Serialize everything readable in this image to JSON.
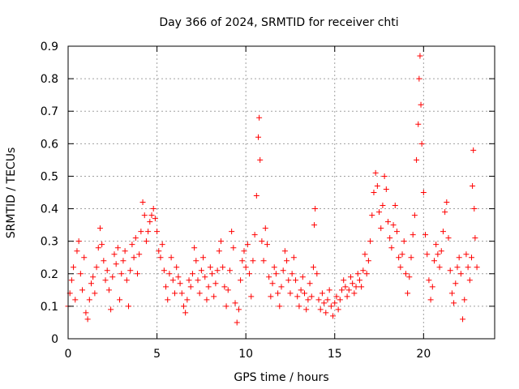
{
  "chart_data": {
    "type": "scatter",
    "title": "Day 366 of 2024, SRMTID for receiver chti",
    "xlabel": "GPS time / hours",
    "ylabel": "SRMTID / TECUs",
    "xlim": [
      0,
      24
    ],
    "ylim": [
      0,
      0.9
    ],
    "x_ticks": [
      0,
      5,
      10,
      15,
      20
    ],
    "x_tick_labels": [
      "0",
      "5",
      "10",
      "15",
      "20"
    ],
    "y_ticks": [
      0,
      0.1,
      0.2,
      0.3,
      0.4,
      0.5,
      0.6,
      0.7,
      0.8,
      0.9
    ],
    "y_tick_labels": [
      "0",
      "0.1",
      "0.2",
      "0.3",
      "0.4",
      "0.5",
      "0.6",
      "0.7",
      "0.8",
      "0.9"
    ],
    "grid": true,
    "marker": "+",
    "color": "#ff0000",
    "series": [
      {
        "name": "SRMTID",
        "points": [
          [
            0.0,
            0.1
          ],
          [
            0.1,
            0.14
          ],
          [
            0.2,
            0.18
          ],
          [
            0.3,
            0.22
          ],
          [
            0.4,
            0.12
          ],
          [
            0.5,
            0.27
          ],
          [
            0.6,
            0.3
          ],
          [
            0.7,
            0.2
          ],
          [
            0.8,
            0.15
          ],
          [
            0.9,
            0.25
          ],
          [
            1.0,
            0.08
          ],
          [
            1.1,
            0.06
          ],
          [
            1.2,
            0.12
          ],
          [
            1.3,
            0.17
          ],
          [
            1.4,
            0.19
          ],
          [
            1.5,
            0.14
          ],
          [
            1.6,
            0.22
          ],
          [
            1.7,
            0.28
          ],
          [
            1.8,
            0.34
          ],
          [
            1.9,
            0.29
          ],
          [
            2.0,
            0.24
          ],
          [
            2.1,
            0.18
          ],
          [
            2.2,
            0.21
          ],
          [
            2.3,
            0.15
          ],
          [
            2.4,
            0.09
          ],
          [
            2.5,
            0.19
          ],
          [
            2.6,
            0.26
          ],
          [
            2.7,
            0.23
          ],
          [
            2.8,
            0.28
          ],
          [
            2.9,
            0.12
          ],
          [
            3.0,
            0.2
          ],
          [
            3.1,
            0.24
          ],
          [
            3.2,
            0.27
          ],
          [
            3.3,
            0.18
          ],
          [
            3.4,
            0.1
          ],
          [
            3.5,
            0.21
          ],
          [
            3.6,
            0.29
          ],
          [
            3.7,
            0.25
          ],
          [
            3.8,
            0.31
          ],
          [
            3.9,
            0.2
          ],
          [
            4.0,
            0.26
          ],
          [
            4.1,
            0.33
          ],
          [
            4.2,
            0.42
          ],
          [
            4.3,
            0.38
          ],
          [
            4.4,
            0.3
          ],
          [
            4.5,
            0.33
          ],
          [
            4.6,
            0.36
          ],
          [
            4.7,
            0.38
          ],
          [
            4.8,
            0.4
          ],
          [
            4.9,
            0.37
          ],
          [
            5.0,
            0.33
          ],
          [
            5.1,
            0.27
          ],
          [
            5.2,
            0.25
          ],
          [
            5.3,
            0.29
          ],
          [
            5.4,
            0.21
          ],
          [
            5.5,
            0.16
          ],
          [
            5.6,
            0.12
          ],
          [
            5.7,
            0.2
          ],
          [
            5.8,
            0.25
          ],
          [
            5.9,
            0.18
          ],
          [
            6.0,
            0.14
          ],
          [
            6.1,
            0.22
          ],
          [
            6.2,
            0.19
          ],
          [
            6.3,
            0.17
          ],
          [
            6.4,
            0.14
          ],
          [
            6.5,
            0.1
          ],
          [
            6.6,
            0.08
          ],
          [
            6.7,
            0.12
          ],
          [
            6.8,
            0.18
          ],
          [
            6.9,
            0.16
          ],
          [
            7.0,
            0.2
          ],
          [
            7.1,
            0.28
          ],
          [
            7.2,
            0.24
          ],
          [
            7.3,
            0.18
          ],
          [
            7.4,
            0.14
          ],
          [
            7.5,
            0.21
          ],
          [
            7.6,
            0.25
          ],
          [
            7.7,
            0.19
          ],
          [
            7.8,
            0.12
          ],
          [
            7.9,
            0.16
          ],
          [
            8.0,
            0.22
          ],
          [
            8.1,
            0.2
          ],
          [
            8.2,
            0.13
          ],
          [
            8.3,
            0.17
          ],
          [
            8.4,
            0.21
          ],
          [
            8.5,
            0.27
          ],
          [
            8.6,
            0.3
          ],
          [
            8.7,
            0.22
          ],
          [
            8.8,
            0.16
          ],
          [
            8.9,
            0.1
          ],
          [
            9.0,
            0.15
          ],
          [
            9.1,
            0.21
          ],
          [
            9.2,
            0.33
          ],
          [
            9.3,
            0.28
          ],
          [
            9.4,
            0.11
          ],
          [
            9.5,
            0.05
          ],
          [
            9.6,
            0.09
          ],
          [
            9.7,
            0.18
          ],
          [
            9.8,
            0.24
          ],
          [
            9.9,
            0.27
          ],
          [
            10.0,
            0.22
          ],
          [
            10.1,
            0.29
          ],
          [
            10.2,
            0.2
          ],
          [
            10.3,
            0.13
          ],
          [
            10.4,
            0.24
          ],
          [
            10.5,
            0.32
          ],
          [
            10.6,
            0.44
          ],
          [
            10.7,
            0.62
          ],
          [
            10.75,
            0.68
          ],
          [
            10.8,
            0.55
          ],
          [
            10.9,
            0.3
          ],
          [
            11.0,
            0.24
          ],
          [
            11.1,
            0.34
          ],
          [
            11.2,
            0.29
          ],
          [
            11.3,
            0.19
          ],
          [
            11.4,
            0.13
          ],
          [
            11.5,
            0.17
          ],
          [
            11.6,
            0.22
          ],
          [
            11.7,
            0.2
          ],
          [
            11.8,
            0.14
          ],
          [
            11.9,
            0.1
          ],
          [
            12.0,
            0.16
          ],
          [
            12.1,
            0.21
          ],
          [
            12.2,
            0.27
          ],
          [
            12.3,
            0.24
          ],
          [
            12.4,
            0.18
          ],
          [
            12.5,
            0.14
          ],
          [
            12.6,
            0.2
          ],
          [
            12.7,
            0.25
          ],
          [
            12.8,
            0.18
          ],
          [
            12.9,
            0.13
          ],
          [
            13.0,
            0.1
          ],
          [
            13.1,
            0.15
          ],
          [
            13.2,
            0.19
          ],
          [
            13.3,
            0.14
          ],
          [
            13.4,
            0.09
          ],
          [
            13.5,
            0.12
          ],
          [
            13.6,
            0.17
          ],
          [
            13.7,
            0.13
          ],
          [
            13.8,
            0.22
          ],
          [
            13.85,
            0.35
          ],
          [
            13.9,
            0.4
          ],
          [
            14.0,
            0.2
          ],
          [
            14.1,
            0.12
          ],
          [
            14.2,
            0.09
          ],
          [
            14.3,
            0.14
          ],
          [
            14.4,
            0.11
          ],
          [
            14.5,
            0.08
          ],
          [
            14.6,
            0.12
          ],
          [
            14.7,
            0.15
          ],
          [
            14.8,
            0.1
          ],
          [
            14.9,
            0.07
          ],
          [
            15.0,
            0.11
          ],
          [
            15.1,
            0.13
          ],
          [
            15.2,
            0.09
          ],
          [
            15.3,
            0.12
          ],
          [
            15.4,
            0.15
          ],
          [
            15.5,
            0.18
          ],
          [
            15.6,
            0.16
          ],
          [
            15.7,
            0.13
          ],
          [
            15.8,
            0.15
          ],
          [
            15.9,
            0.19
          ],
          [
            16.0,
            0.17
          ],
          [
            16.1,
            0.14
          ],
          [
            16.2,
            0.16
          ],
          [
            16.3,
            0.2
          ],
          [
            16.4,
            0.18
          ],
          [
            16.5,
            0.16
          ],
          [
            16.6,
            0.21
          ],
          [
            16.7,
            0.26
          ],
          [
            16.8,
            0.2
          ],
          [
            16.9,
            0.24
          ],
          [
            17.0,
            0.3
          ],
          [
            17.1,
            0.38
          ],
          [
            17.2,
            0.45
          ],
          [
            17.3,
            0.51
          ],
          [
            17.4,
            0.47
          ],
          [
            17.5,
            0.39
          ],
          [
            17.6,
            0.34
          ],
          [
            17.7,
            0.41
          ],
          [
            17.8,
            0.5
          ],
          [
            17.9,
            0.46
          ],
          [
            18.0,
            0.36
          ],
          [
            18.1,
            0.31
          ],
          [
            18.2,
            0.28
          ],
          [
            18.3,
            0.35
          ],
          [
            18.4,
            0.41
          ],
          [
            18.5,
            0.33
          ],
          [
            18.6,
            0.25
          ],
          [
            18.7,
            0.22
          ],
          [
            18.8,
            0.26
          ],
          [
            18.9,
            0.3
          ],
          [
            19.0,
            0.2
          ],
          [
            19.1,
            0.14
          ],
          [
            19.2,
            0.19
          ],
          [
            19.3,
            0.25
          ],
          [
            19.4,
            0.32
          ],
          [
            19.5,
            0.38
          ],
          [
            19.6,
            0.55
          ],
          [
            19.7,
            0.66
          ],
          [
            19.75,
            0.8
          ],
          [
            19.8,
            0.87
          ],
          [
            19.85,
            0.72
          ],
          [
            19.9,
            0.6
          ],
          [
            20.0,
            0.45
          ],
          [
            20.1,
            0.32
          ],
          [
            20.2,
            0.26
          ],
          [
            20.3,
            0.18
          ],
          [
            20.4,
            0.12
          ],
          [
            20.5,
            0.16
          ],
          [
            20.6,
            0.24
          ],
          [
            20.7,
            0.29
          ],
          [
            20.8,
            0.26
          ],
          [
            20.9,
            0.22
          ],
          [
            21.0,
            0.27
          ],
          [
            21.1,
            0.33
          ],
          [
            21.2,
            0.39
          ],
          [
            21.3,
            0.42
          ],
          [
            21.4,
            0.31
          ],
          [
            21.5,
            0.21
          ],
          [
            21.6,
            0.14
          ],
          [
            21.7,
            0.11
          ],
          [
            21.8,
            0.17
          ],
          [
            21.9,
            0.22
          ],
          [
            22.0,
            0.25
          ],
          [
            22.1,
            0.2
          ],
          [
            22.2,
            0.06
          ],
          [
            22.3,
            0.12
          ],
          [
            22.4,
            0.26
          ],
          [
            22.5,
            0.22
          ],
          [
            22.6,
            0.18
          ],
          [
            22.7,
            0.25
          ],
          [
            22.75,
            0.47
          ],
          [
            22.8,
            0.58
          ],
          [
            22.85,
            0.4
          ],
          [
            22.9,
            0.31
          ],
          [
            23.0,
            0.22
          ]
        ]
      }
    ]
  }
}
